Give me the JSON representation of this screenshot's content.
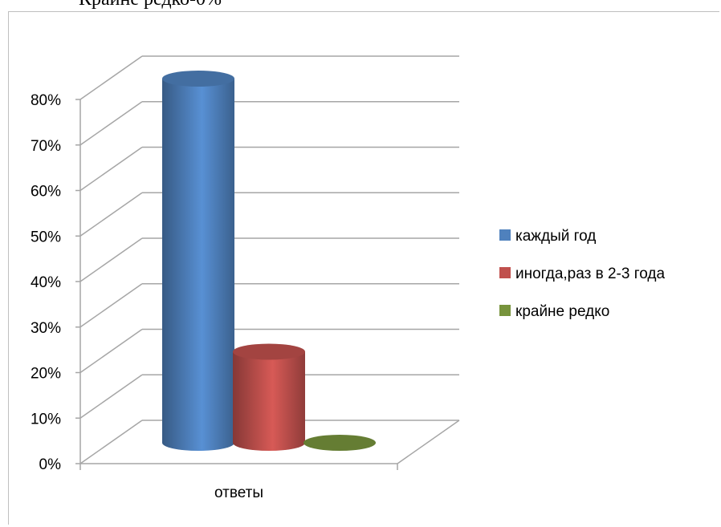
{
  "document": {
    "partial_line": "Крайне редко-0%"
  },
  "chart_data": {
    "type": "bar",
    "style": "3d-cylinder",
    "categories": [
      "ответы"
    ],
    "series": [
      {
        "name": "каждый год",
        "values": [
          0.8
        ],
        "color": "#4F81BD"
      },
      {
        "name": "иногда,раз в 2-3 года",
        "values": [
          0.2
        ],
        "color": "#C0504D"
      },
      {
        "name": "крайне редко",
        "values": [
          0.0
        ],
        "color": "#77933C"
      }
    ],
    "ylim": [
      0,
      0.8
    ],
    "y_ticks": [
      "0%",
      "10%",
      "20%",
      "30%",
      "40%",
      "50%",
      "60%",
      "70%",
      "80%"
    ],
    "grid": true,
    "legend_position": "right"
  }
}
